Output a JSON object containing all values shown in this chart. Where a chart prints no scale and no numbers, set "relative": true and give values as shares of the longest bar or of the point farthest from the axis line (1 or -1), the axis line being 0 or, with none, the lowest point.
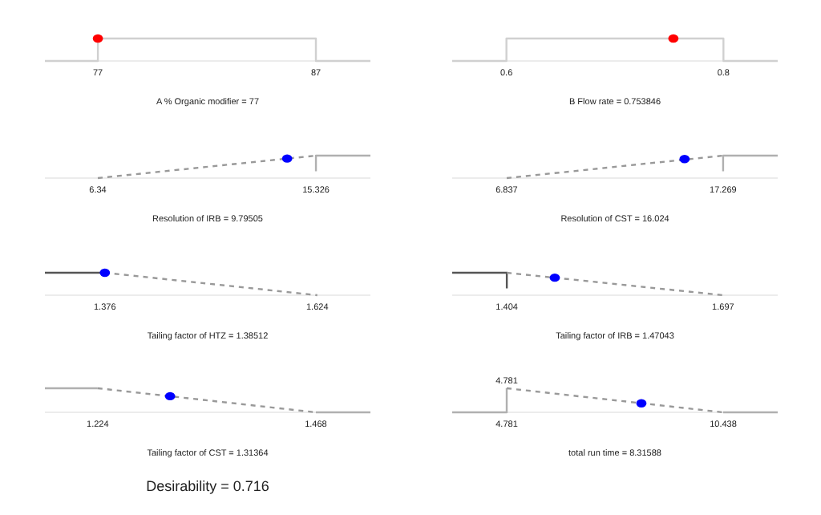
{
  "chart_data": [
    {
      "type": "line",
      "relative": true,
      "tick_labels": "x",
      "xlabel": "A % Organic modifier = 77",
      "xlim": [
        74.57,
        89.5
      ],
      "xticks": [
        77,
        87
      ],
      "series": [
        {
          "type": "line",
          "color": "#d0d0d0",
          "line_style": "solid",
          "x": [
            74.57,
            77,
            77,
            87,
            87,
            89.5
          ],
          "values": [
            0,
            0,
            1,
            1,
            0,
            0
          ]
        },
        {
          "type": "line",
          "color": "#ff0000",
          "marker": "circle",
          "x": [
            77
          ],
          "values": [
            1
          ]
        }
      ]
    },
    {
      "type": "line",
      "relative": true,
      "tick_labels": "x",
      "xlabel": "B Flow rate = 0.753846",
      "xlim": [
        0.55,
        0.85
      ],
      "xticks": [
        0.6,
        0.8
      ],
      "series": [
        {
          "type": "line",
          "color": "#d0d0d0",
          "line_style": "solid",
          "x": [
            0.55,
            0.6,
            0.6,
            0.8,
            0.8,
            0.85
          ],
          "values": [
            0,
            0,
            1,
            1,
            0,
            0
          ]
        },
        {
          "type": "line",
          "color": "#ff0000",
          "marker": "circle",
          "x": [
            0.753846
          ],
          "values": [
            1
          ]
        }
      ]
    },
    {
      "type": "line",
      "relative": true,
      "tick_labels": "x",
      "xlabel": "Resolution of IRB = 9.79505",
      "xlim": [
        4.16,
        17.57
      ],
      "xticks": [
        6.34,
        15.326
      ],
      "series": [
        {
          "type": "line",
          "color": "#999999",
          "line_style": "dashed",
          "x": [
            6.34,
            15.326
          ],
          "values": [
            0,
            1
          ]
        },
        {
          "type": "line",
          "color": "#b0b0b0",
          "line_style": "solid",
          "x": [
            15.326,
            15.326,
            17.57
          ],
          "values": [
            0.3,
            1,
            1
          ]
        },
        {
          "type": "line",
          "color": "#0000ff",
          "marker": "circle",
          "x": [
            14.14
          ],
          "values": [
            0.87
          ]
        }
      ]
    },
    {
      "type": "line",
      "relative": true,
      "tick_labels": "x",
      "xlabel": "Resolution of CST = 16.024",
      "xlim": [
        4.21,
        19.9
      ],
      "xticks": [
        6.837,
        17.269
      ],
      "series": [
        {
          "type": "line",
          "color": "#999999",
          "line_style": "dashed",
          "x": [
            6.837,
            17.269
          ],
          "values": [
            0,
            1
          ]
        },
        {
          "type": "line",
          "color": "#b0b0b0",
          "line_style": "solid",
          "x": [
            17.269,
            17.269,
            19.9
          ],
          "values": [
            0.3,
            1,
            1
          ]
        },
        {
          "type": "line",
          "color": "#0000ff",
          "marker": "circle",
          "x": [
            15.41
          ],
          "values": [
            0.85
          ]
        }
      ]
    },
    {
      "type": "line",
      "relative": true,
      "tick_labels": "x",
      "xlabel": "Tailing factor of HTZ = 1.38512",
      "xlim": [
        1.306,
        1.686
      ],
      "xticks": [
        1.376,
        1.624
      ],
      "series": [
        {
          "type": "line",
          "color": "#555555",
          "line_style": "solid",
          "x": [
            1.306,
            1.376
          ],
          "values": [
            1,
            1
          ]
        },
        {
          "type": "line",
          "color": "#999999",
          "line_style": "dashed",
          "x": [
            1.376,
            1.624
          ],
          "values": [
            1,
            0
          ]
        },
        {
          "type": "line",
          "color": "#0000ff",
          "marker": "circle",
          "x": [
            1.376
          ],
          "values": [
            1
          ]
        }
      ]
    },
    {
      "type": "line",
      "relative": true,
      "tick_labels": "x",
      "xlabel": "Tailing factor of IRB = 1.47043",
      "xlim": [
        1.33,
        1.771
      ],
      "xticks": [
        1.404,
        1.697
      ],
      "series": [
        {
          "type": "line",
          "color": "#555555",
          "line_style": "solid",
          "x": [
            1.33,
            1.404,
            1.404
          ],
          "values": [
            1,
            1,
            0.3
          ]
        },
        {
          "type": "line",
          "color": "#999999",
          "line_style": "dashed",
          "x": [
            1.404,
            1.697
          ],
          "values": [
            1,
            0
          ]
        },
        {
          "type": "line",
          "color": "#0000ff",
          "marker": "circle",
          "x": [
            1.469
          ],
          "values": [
            0.78
          ]
        }
      ]
    },
    {
      "type": "line",
      "relative": true,
      "tick_labels": "x",
      "xlabel": "Tailing factor of CST = 1.31364",
      "xlim": [
        1.165,
        1.529
      ],
      "xticks": [
        1.224,
        1.468
      ],
      "annotations": [
        "Desirability = 0.716"
      ],
      "series": [
        {
          "type": "line",
          "color": "#b0b0b0",
          "line_style": "solid",
          "x": [
            1.165,
            1.224
          ],
          "values": [
            1,
            1
          ]
        },
        {
          "type": "line",
          "color": "#999999",
          "line_style": "dashed",
          "x": [
            1.224,
            1.468
          ],
          "values": [
            1,
            0
          ]
        },
        {
          "type": "line",
          "color": "#b0b0b0",
          "line_style": "solid",
          "x": [
            1.468,
            1.529
          ],
          "values": [
            0,
            0
          ]
        },
        {
          "type": "line",
          "color": "#0000ff",
          "marker": "circle",
          "x": [
            1.305
          ],
          "values": [
            0.67
          ]
        }
      ]
    },
    {
      "type": "line",
      "relative": true,
      "tick_labels": "x",
      "xlabel": "total run time = 8.31588",
      "xlim": [
        3.356,
        11.863
      ],
      "xticks": [
        4.781,
        10.438
      ],
      "annotations": [
        {
          "text": "4.781",
          "x": 4.781,
          "y": 1
        }
      ],
      "series": [
        {
          "type": "line",
          "color": "#b0b0b0",
          "line_style": "solid",
          "x": [
            3.356,
            4.781,
            4.781
          ],
          "values": [
            0,
            0,
            1
          ]
        },
        {
          "type": "line",
          "color": "#999999",
          "line_style": "dashed",
          "x": [
            4.781,
            10.438
          ],
          "values": [
            1,
            0
          ]
        },
        {
          "type": "line",
          "color": "#b0b0b0",
          "line_style": "solid",
          "x": [
            10.438,
            11.863
          ],
          "values": [
            0,
            0
          ]
        },
        {
          "type": "line",
          "color": "#0000ff",
          "marker": "circle",
          "x": [
            8.3
          ],
          "values": [
            0.375
          ]
        }
      ]
    }
  ]
}
